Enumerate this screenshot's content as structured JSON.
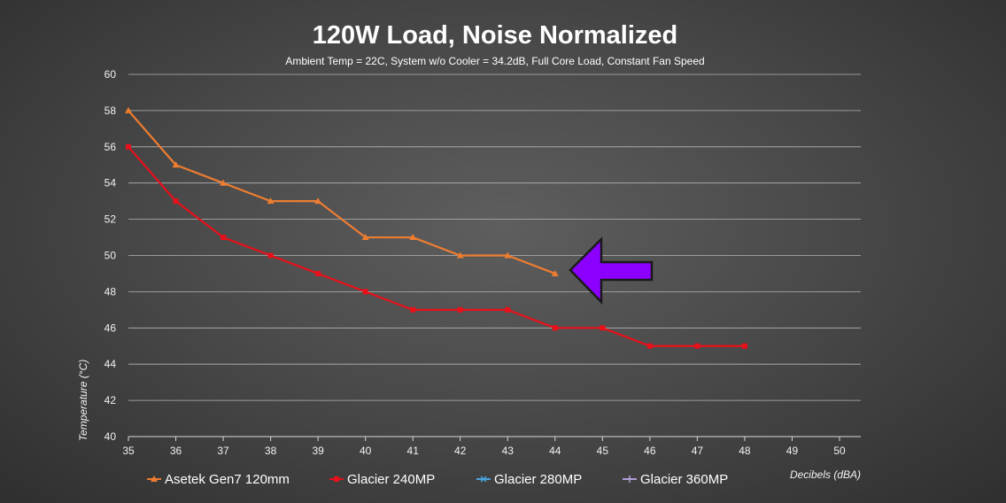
{
  "chart_data": {
    "type": "line",
    "title": "120W Load, Noise Normalized",
    "subtitle": "Ambient Temp = 22C, System w/o Cooler = 34.2dB, Full Core Load, Constant Fan Speed",
    "xlabel": "Decibels (dBA)",
    "ylabel": "Temperature  (°C)",
    "xlim": [
      35,
      50
    ],
    "ylim": [
      40,
      60
    ],
    "x_ticks": [
      "35",
      "36",
      "37",
      "38",
      "39",
      "40",
      "41",
      "42",
      "43",
      "44",
      "45",
      "46",
      "47",
      "48",
      "49",
      "50"
    ],
    "y_ticks": [
      "40",
      "42",
      "44",
      "46",
      "48",
      "50",
      "52",
      "54",
      "56",
      "58",
      "60"
    ],
    "grid": true,
    "legend_position": "bottom",
    "series": [
      {
        "name": "Asetek Gen7 120mm",
        "color": "#ed7d31",
        "marker": "triangle",
        "x": [
          35,
          36,
          37,
          38,
          39,
          40,
          41,
          42,
          43,
          44
        ],
        "y": [
          58,
          55,
          54,
          53,
          53,
          51,
          51,
          50,
          50,
          49
        ]
      },
      {
        "name": "Glacier 240MP",
        "color": "#e8101a",
        "marker": "square",
        "x": [
          35,
          36,
          37,
          38,
          39,
          40,
          41,
          42,
          43,
          44,
          45,
          46,
          47,
          48
        ],
        "y": [
          56,
          53,
          51,
          50,
          49,
          48,
          47,
          47,
          47,
          46,
          46,
          45,
          45,
          45
        ]
      },
      {
        "name": "Glacier 280MP",
        "color": "#4aa3df",
        "marker": "x",
        "x": [],
        "y": []
      },
      {
        "name": "Glacier 360MP",
        "color": "#b39ddb",
        "marker": "star",
        "x": [],
        "y": []
      }
    ],
    "annotations": [
      {
        "type": "arrow",
        "direction": "left",
        "points_to_x": 44,
        "points_to_y": 49,
        "color": "#8b00ff"
      }
    ]
  }
}
